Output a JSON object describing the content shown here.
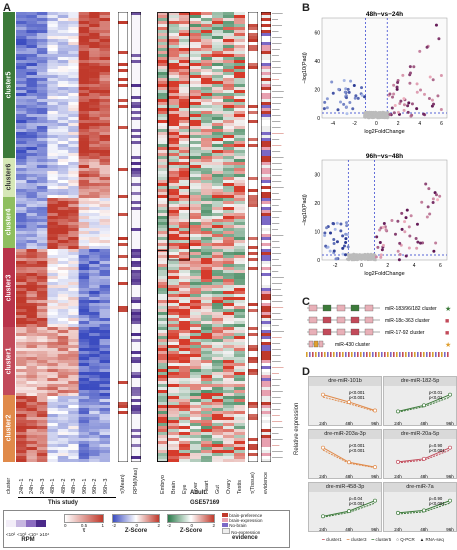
{
  "panels": {
    "a": "A",
    "b": "B",
    "c": "C",
    "d": "D"
  },
  "heatmap": {
    "clusters": [
      "cluster5",
      "cluster6",
      "cluster4",
      "cluster3",
      "cluster1",
      "cluster2"
    ],
    "cluster_colors": [
      "#3c7a3a",
      "#d6e8b7",
      "#8fbf5f",
      "#b9334a",
      "#c24a5a",
      "#e08a4a"
    ],
    "columns": [
      "cluster",
      "24h−1",
      "24h−2",
      "24h−3",
      "48h−1",
      "48h−2",
      "48h−3",
      "96h−1",
      "96h−2",
      "96h−3"
    ],
    "tau_label": "τ(Mean)",
    "rpmmax_label": "RPM(Max)",
    "adult_columns": [
      "Embryo",
      "Brain",
      "Eye",
      "Liver",
      "Heart",
      "Gut",
      "Ovary",
      "Testis"
    ],
    "tissue_label": "τ(Tissue)",
    "evidence_label": "evidence",
    "this_study": "This study",
    "gse": "GSE57169",
    "adult": "Adult"
  },
  "legend": {
    "rpm_ticks": [
      "<10²",
      "<10³",
      "<10⁴",
      "≥10⁴"
    ],
    "rpm_label": "RPM",
    "tau_ticks": [
      "0",
      "0.5",
      "1"
    ],
    "tau_label": "τ",
    "z_label": "Z-Score",
    "z_ticks": [
      "-2",
      "0",
      "2"
    ],
    "evidence_label": "evidence",
    "evidence_items": [
      {
        "label": "brain-preference",
        "color": "#c0392b"
      },
      {
        "label": "brain-expression",
        "color": "#e8a0b0"
      },
      {
        "label": "No-brain",
        "color": "#7b68c6"
      },
      {
        "label": "No-expression",
        "color": "#eeeeee"
      }
    ]
  },
  "volcano1": {
    "title": "48h−vs−24h",
    "xlabel": "log2FoldChange",
    "ylabel": "−log10(Padj)",
    "x_ticks": [
      "-4",
      "-2",
      "0",
      "2",
      "4",
      "6"
    ],
    "y_ticks": [
      "0",
      "20",
      "40",
      "60"
    ]
  },
  "volcano2": {
    "title": "96h−vs−48h",
    "xlabel": "log2FoldChange",
    "ylabel": "−log10(Padj)",
    "x_ticks": [
      "-2",
      "0",
      "2",
      "4",
      "6"
    ],
    "y_ticks": [
      "0",
      "10",
      "20",
      "30"
    ]
  },
  "clusters_c": [
    {
      "label": "miR-183/96/182 cluster"
    },
    {
      "label": "miR-18c-363 cluster"
    },
    {
      "label": "miR-17-92 cluster"
    },
    {
      "label": "miR-430 cluster"
    }
  ],
  "panel_d": {
    "ylabel": "Relative expression",
    "x_ticks": [
      "24h",
      "48h",
      "96h"
    ],
    "panels": [
      {
        "title": "dre-miR-101b",
        "p1": "p<0.001",
        "p2": "p<0.001"
      },
      {
        "title": "dre-miR-182-5p",
        "p1": "p<0.01",
        "p2": "p<0.01"
      },
      {
        "title": "dre-miR-203a-3p",
        "p1": "p<0.001",
        "p2": "p<0.001"
      },
      {
        "title": "dre-miR-20a-5p",
        "p1": "p=0.90",
        "p2": "p<0.001"
      },
      {
        "title": "dre-miR-458-3p",
        "p1": "p=0.04",
        "p2": "p<0.001"
      },
      {
        "title": "dre-miR-7a",
        "p1": "p=0.90",
        "p2": "p<0.001"
      }
    ],
    "legend": [
      "cluster1",
      "cluster3",
      "cluster5",
      "Q-PCR",
      "RNA-seq"
    ]
  }
}
